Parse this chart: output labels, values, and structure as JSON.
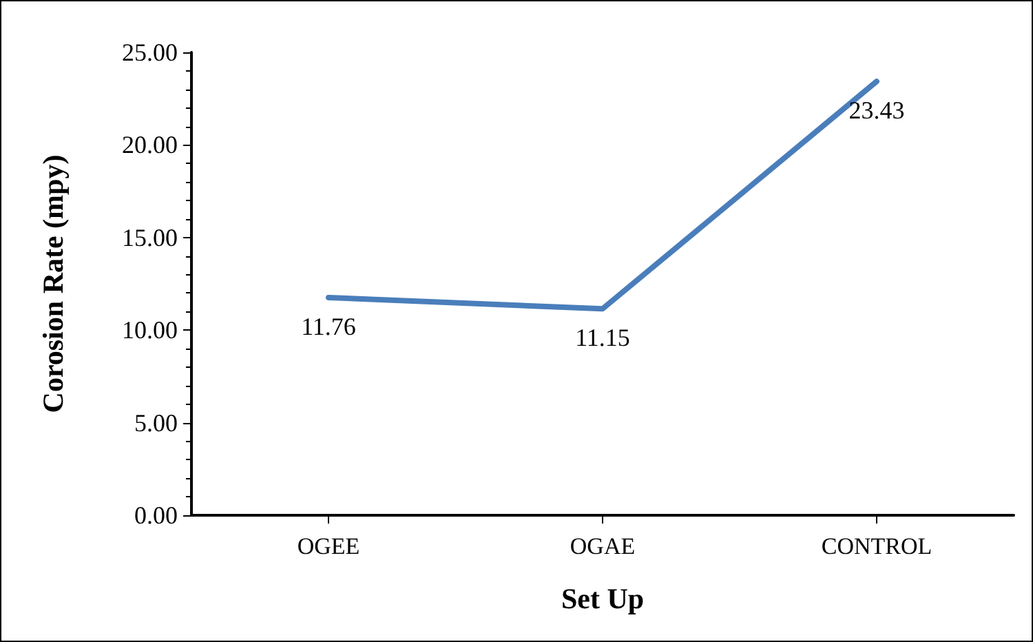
{
  "chart_data": {
    "type": "line",
    "xlabel": "Set Up",
    "ylabel": "Corosion Rate (mpy)",
    "categories": [
      "OGEE",
      "OGAE",
      "CONTROL"
    ],
    "series": [
      {
        "color": "#4a7ebb",
        "values": [
          11.76,
          11.15,
          23.43
        ]
      }
    ],
    "ylim": [
      0,
      25
    ],
    "yticks": [
      {
        "value": 0,
        "label": "0.00"
      },
      {
        "value": 5,
        "label": "5.00"
      },
      {
        "value": 10,
        "label": "10.00"
      },
      {
        "value": 15,
        "label": "15.00"
      },
      {
        "value": 20,
        "label": "20.00"
      },
      {
        "value": 25,
        "label": "25.00"
      }
    ],
    "data_labels": true,
    "grid": false,
    "marker": "none",
    "line_style": "solid"
  }
}
